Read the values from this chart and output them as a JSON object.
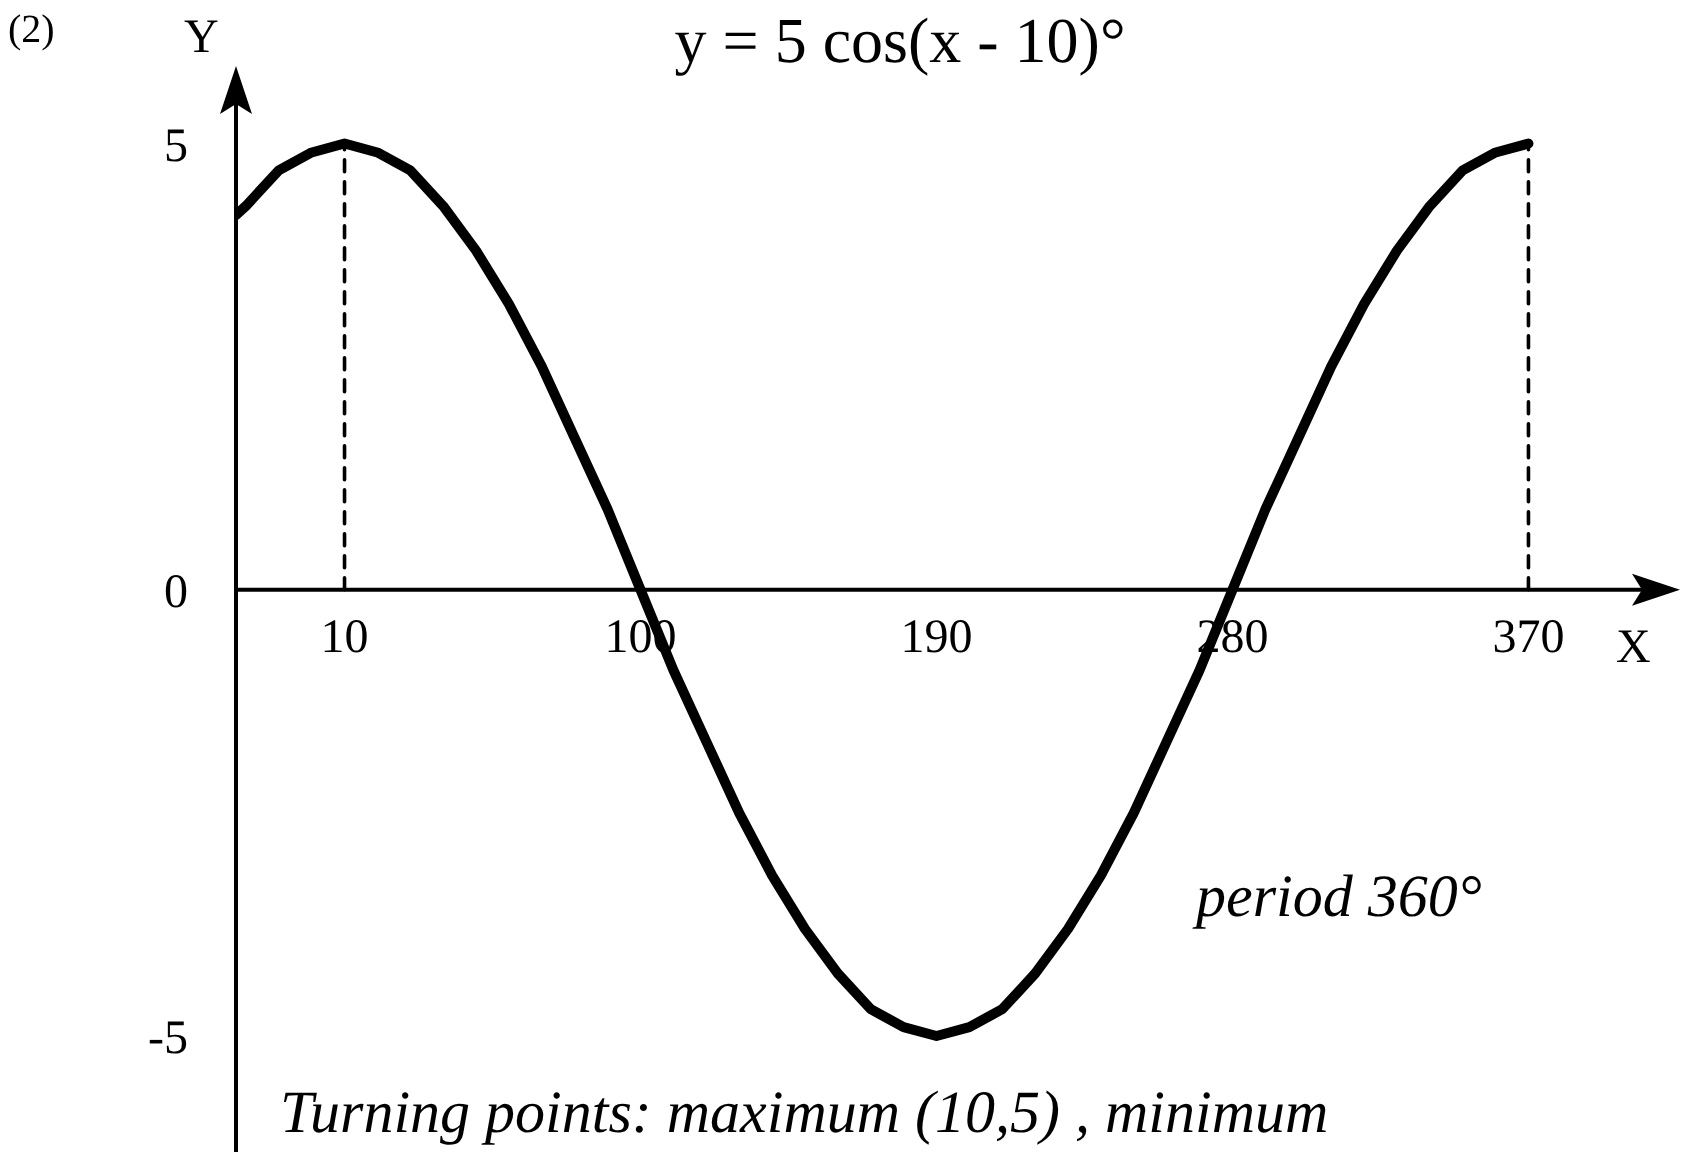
{
  "chart_data": {
    "type": "line",
    "title": "y = 5 cos(x - 10)°",
    "xlabel": "X",
    "ylabel": "Y",
    "annotations": [
      "(2)",
      "period 360°",
      "Turning points: maximum (10,5) , minimum"
    ],
    "xlim": [
      -23,
      410
    ],
    "ylim": [
      -6.3,
      5.6
    ],
    "xticks": [
      10,
      100,
      190,
      280,
      370
    ],
    "yticks": [
      -5,
      0,
      5
    ],
    "grid": false,
    "marker": "none",
    "line_style": "solid",
    "series": [
      {
        "color": "#000000",
        "x": [
          -23,
          -20,
          -10,
          0,
          10,
          20,
          30,
          40,
          50,
          60,
          70,
          80,
          90,
          100,
          110,
          120,
          130,
          140,
          150,
          160,
          170,
          180,
          190,
          200,
          210,
          220,
          230,
          240,
          250,
          260,
          270,
          280,
          290,
          300,
          310,
          320,
          330,
          340,
          350,
          360,
          370
        ],
        "values": [
          4.2,
          4.3,
          4.7,
          4.9,
          5,
          4.9,
          4.7,
          4.3,
          3.8,
          3.2,
          2.5,
          1.7,
          0.9,
          0,
          -0.9,
          -1.7,
          -2.5,
          -3.2,
          -3.8,
          -4.3,
          -4.7,
          -4.9,
          -5,
          -4.9,
          -4.7,
          -4.3,
          -3.8,
          -3.2,
          -2.5,
          -1.7,
          -0.9,
          0,
          0.9,
          1.7,
          2.5,
          3.2,
          3.8,
          4.3,
          4.7,
          4.9,
          5
        ]
      },
      {
        "color": "#000000",
        "line_style": "dashed",
        "x": [
          10,
          10
        ],
        "values": [
          0,
          5
        ]
      },
      {
        "color": "#000000",
        "line_style": "dashed",
        "x": [
          370,
          370
        ],
        "values": [
          0,
          5
        ]
      }
    ]
  }
}
